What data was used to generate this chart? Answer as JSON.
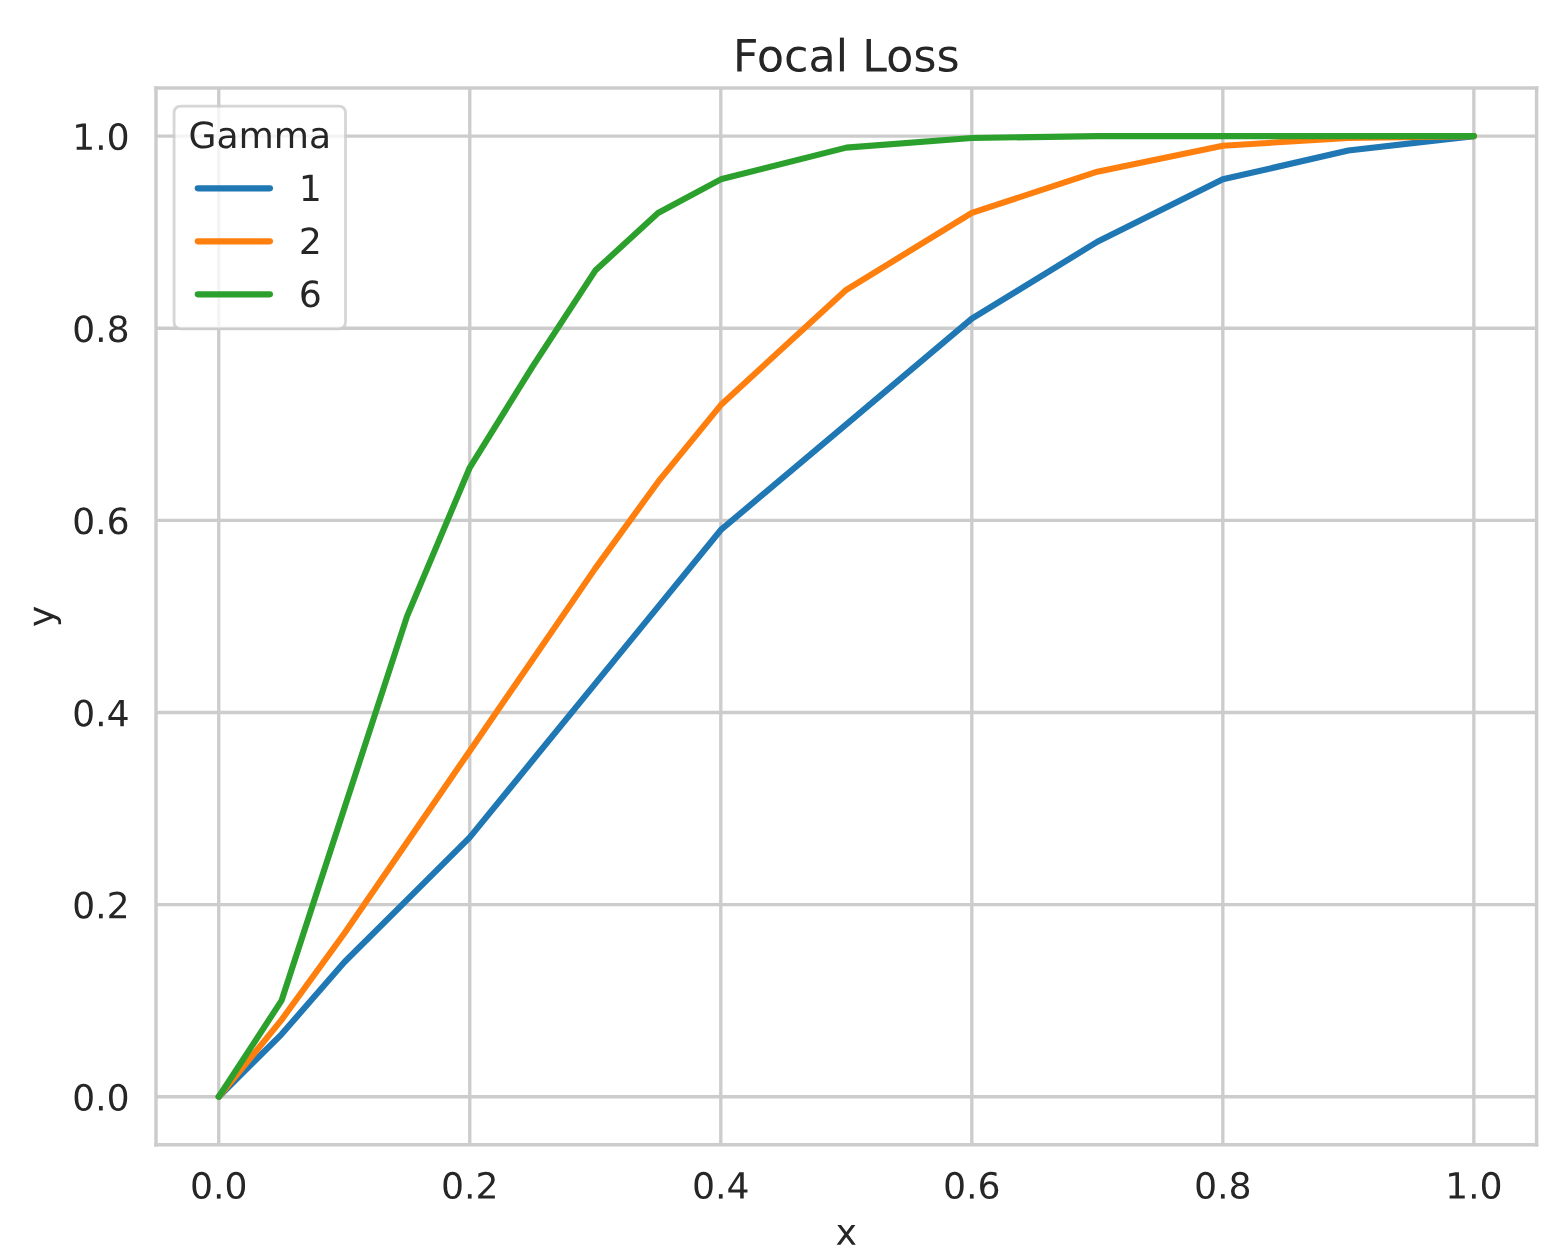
{
  "chart_data": {
    "type": "line",
    "title": "Focal Loss",
    "xlabel": "x",
    "ylabel": "y",
    "legend_title": "Gamma",
    "x": [
      0,
      0.05,
      0.1,
      0.15,
      0.2,
      0.25,
      0.3,
      0.35,
      0.4,
      0.5,
      0.6,
      0.7,
      0.8,
      0.9,
      1.0
    ],
    "series": [
      {
        "name": "1",
        "color": "#1f77b4",
        "values": [
          0,
          0.065,
          0.14,
          0.205,
          0.27,
          0.35,
          0.43,
          0.51,
          0.59,
          0.7,
          0.81,
          0.89,
          0.955,
          0.985,
          1.0
        ]
      },
      {
        "name": "2",
        "color": "#ff7f0e",
        "values": [
          0,
          0.08,
          0.17,
          0.265,
          0.36,
          0.455,
          0.55,
          0.64,
          0.72,
          0.84,
          0.92,
          0.963,
          0.99,
          0.998,
          1.0
        ]
      },
      {
        "name": "6",
        "color": "#2ca02c",
        "values": [
          0,
          0.1,
          0.3,
          0.5,
          0.655,
          0.76,
          0.86,
          0.92,
          0.955,
          0.988,
          0.998,
          1.0,
          1.0,
          1.0,
          1.0
        ]
      }
    ],
    "xlim": [
      -0.05,
      1.05
    ],
    "ylim": [
      -0.05,
      1.05
    ],
    "xticks": [
      {
        "value": 0,
        "label": "0.0"
      },
      0.2,
      0.4,
      0.6,
      0.8,
      {
        "value": 1,
        "label": "1.0"
      }
    ],
    "yticks": [
      {
        "value": 0,
        "label": "0.0"
      },
      0.2,
      0.4,
      0.6,
      0.8,
      {
        "value": 1,
        "label": "1.0"
      }
    ],
    "grid": true,
    "legend": "top left"
  }
}
